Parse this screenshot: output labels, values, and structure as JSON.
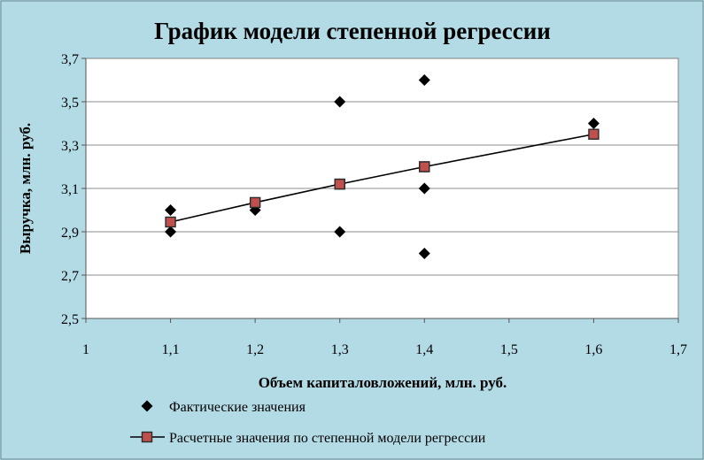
{
  "chart_data": {
    "type": "scatter",
    "title": "График модели степенной регрессии",
    "xlabel": "Объем капиталовложений, млн. руб.",
    "ylabel": "Выручка, млн. руб.",
    "xlim": [
      1,
      1.7
    ],
    "ylim": [
      2.5,
      3.7
    ],
    "xticks": [
      "1",
      "1,1",
      "1,2",
      "1,3",
      "1,4",
      "1,5",
      "1,6",
      "1,7"
    ],
    "yticks": [
      "2,5",
      "2,7",
      "2,9",
      "3,1",
      "3,3",
      "3,5",
      "3,7"
    ],
    "grid": "horizontal",
    "legend": "bottom",
    "series": [
      {
        "name": "Фактические значения",
        "marker": "diamond",
        "color": "#000000",
        "points": [
          {
            "x": 1.1,
            "y": 3.0
          },
          {
            "x": 1.1,
            "y": 2.9
          },
          {
            "x": 1.2,
            "y": 3.0
          },
          {
            "x": 1.3,
            "y": 3.5
          },
          {
            "x": 1.3,
            "y": 2.9
          },
          {
            "x": 1.3,
            "y": 3.12
          },
          {
            "x": 1.4,
            "y": 3.6
          },
          {
            "x": 1.4,
            "y": 3.2
          },
          {
            "x": 1.4,
            "y": 3.1
          },
          {
            "x": 1.4,
            "y": 2.8
          },
          {
            "x": 1.6,
            "y": 3.4
          }
        ]
      },
      {
        "name": "Расчетные значения по степенной модели регрессии",
        "marker": "square",
        "color": "#c0504d",
        "line": true,
        "points": [
          {
            "x": 1.1,
            "y": 2.945
          },
          {
            "x": 1.2,
            "y": 3.035
          },
          {
            "x": 1.3,
            "y": 3.12
          },
          {
            "x": 1.3,
            "y": 3.12
          },
          {
            "x": 1.4,
            "y": 3.2
          },
          {
            "x": 1.4,
            "y": 3.2
          },
          {
            "x": 1.6,
            "y": 3.35
          }
        ]
      }
    ]
  }
}
